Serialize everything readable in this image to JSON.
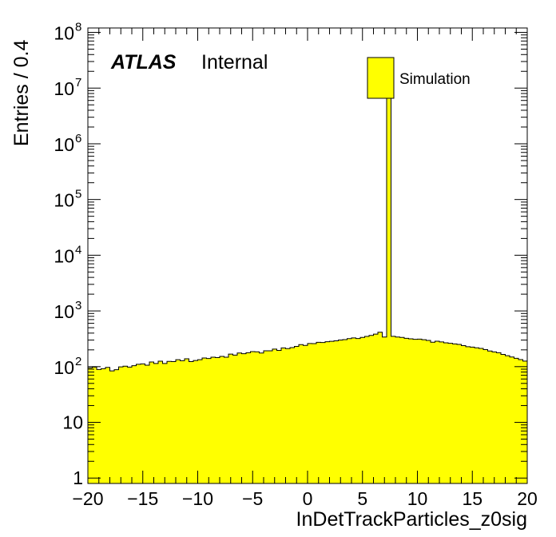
{
  "chart_data": {
    "type": "bar",
    "histogram": true,
    "xlabel": "InDetTrackParticles_z0sig",
    "ylabel": "Entries / 0.4",
    "xlim": [
      -20,
      20
    ],
    "ylim": [
      0.8,
      120000000
    ],
    "yscale": "log",
    "grid": false,
    "legend_position": "top-right",
    "x_tick_labels": [
      "−20",
      "−15",
      "−10",
      "−5",
      "0",
      "5",
      "10",
      "15",
      "20"
    ],
    "x_tick_values": [
      -20,
      -15,
      -10,
      -5,
      0,
      5,
      10,
      15,
      20
    ],
    "y_tick_labels": [
      {
        "value": 1,
        "base": "1",
        "exp": ""
      },
      {
        "value": 10,
        "base": "10",
        "exp": ""
      },
      {
        "value": 100,
        "base": "10",
        "exp": "2"
      },
      {
        "value": 1000,
        "base": "10",
        "exp": "3"
      },
      {
        "value": 10000,
        "base": "10",
        "exp": "4"
      },
      {
        "value": 100000,
        "base": "10",
        "exp": "5"
      },
      {
        "value": 1000000,
        "base": "10",
        "exp": "6"
      },
      {
        "value": 10000000,
        "base": "10",
        "exp": "7"
      },
      {
        "value": 100000000,
        "base": "10",
        "exp": "8"
      }
    ],
    "bin_edges_start": -20,
    "bin_width": 0.4,
    "series": [
      {
        "name": "Simulation",
        "color": "#ffff00",
        "edge_color": "#000000",
        "values": [
          95,
          98,
          89,
          92,
          97,
          84,
          88,
          99,
          102,
          98,
          104,
          110,
          112,
          106,
          121,
          114,
          125,
          114,
          124,
          123,
          133,
          128,
          138,
          123,
          129,
          133,
          143,
          140,
          148,
          145,
          153,
          148,
          168,
          161,
          176,
          171,
          178,
          186,
          185,
          176,
          192,
          192,
          206,
          196,
          217,
          211,
          220,
          231,
          248,
          240,
          260,
          259,
          273,
          271,
          280,
          285,
          291,
          300,
          306,
          318,
          328,
          320,
          335,
          349,
          363,
          384,
          414,
          340,
          9300000,
          350,
          340,
          335,
          322,
          316,
          309,
          312,
          304,
          296,
          274,
          286,
          278,
          268,
          262,
          256,
          251,
          238,
          228,
          224,
          218,
          212,
          202,
          191,
          184,
          178,
          166,
          157,
          149,
          141,
          134,
          126
        ]
      }
    ],
    "annotations": {
      "experiment": "ATLAS",
      "status": "Internal"
    }
  }
}
